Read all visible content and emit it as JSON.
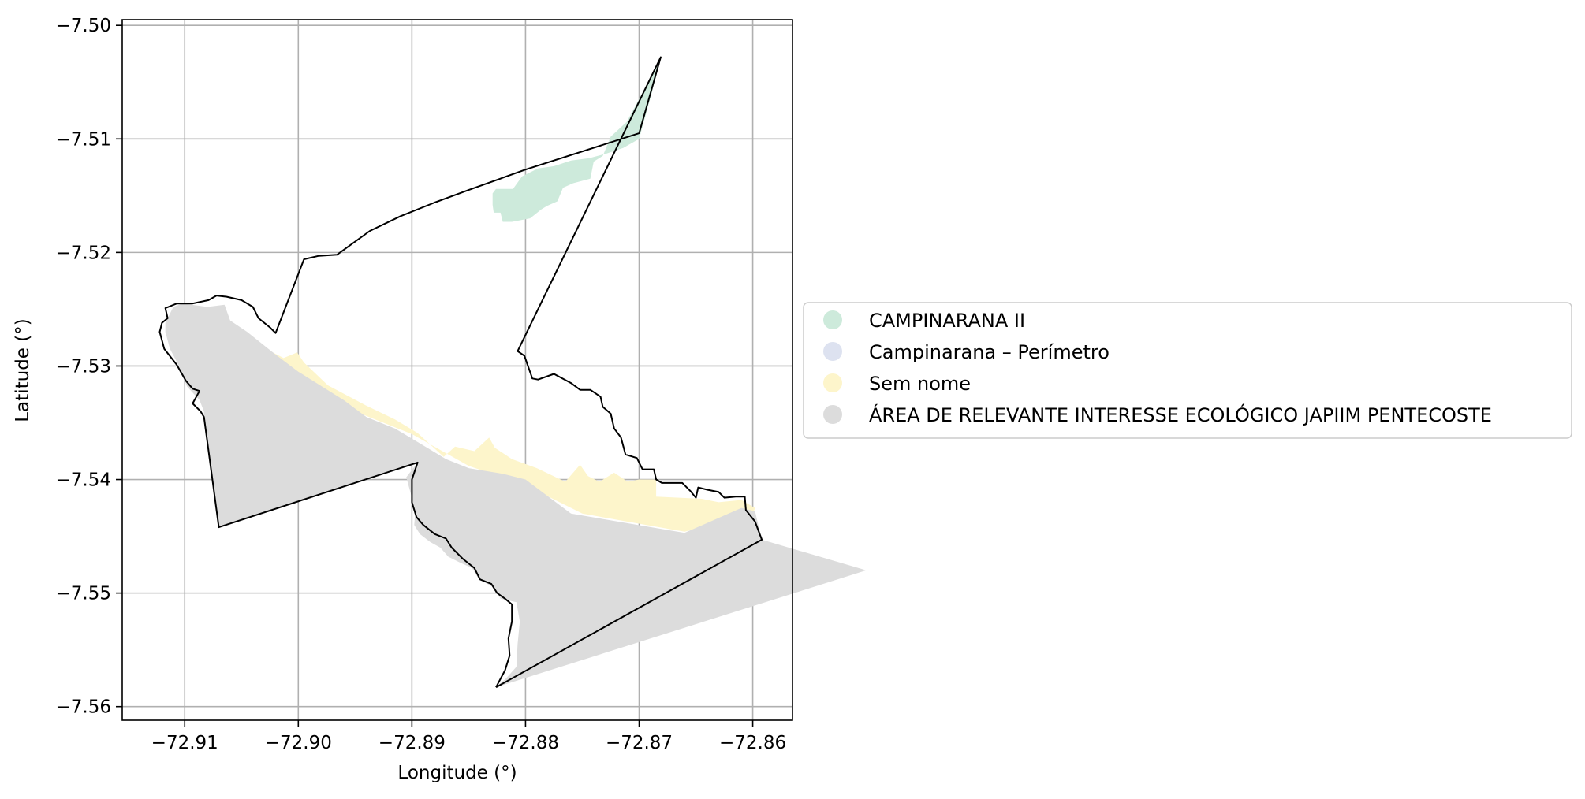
{
  "chart_data": {
    "type": "map",
    "xlabel": "Longitude (°)",
    "ylabel": "Latitude (°)",
    "xlim": [
      -72.9155,
      -72.8565
    ],
    "ylim": [
      -7.5612,
      -7.4995
    ],
    "xticks": [
      -72.91,
      -72.9,
      -72.89,
      -72.88,
      -72.87,
      -72.86
    ],
    "yticks": [
      -7.5,
      -7.51,
      -7.52,
      -7.53,
      -7.54,
      -7.55,
      -7.56
    ],
    "xtick_labels": [
      "−72.91",
      "−72.90",
      "−72.89",
      "−72.88",
      "−72.87",
      "−72.86"
    ],
    "ytick_labels": [
      "−7.50",
      "−7.51",
      "−7.52",
      "−7.53",
      "−7.54",
      "−7.55",
      "−7.56"
    ],
    "grid": true,
    "legend_position": "right",
    "legend": [
      {
        "label": "CAMPINARANA II",
        "color": "#cdeadb"
      },
      {
        "label": "Campinarana – Perímetro",
        "color": "#dde2f0"
      },
      {
        "label": "Sem nome",
        "color": "#fdf5cb"
      },
      {
        "label": "ÁREA DE RELEVANTE INTERESSE ECOLÓGICO JAPIIM PENTECOSTE",
        "color": "#dcdcdc"
      }
    ],
    "layers": [
      {
        "name": "CAMPINARANA II",
        "color": "#cdeadb",
        "coordinates": [
          [
            -72.8826,
            -7.5144
          ],
          [
            -72.8811,
            -7.5144
          ],
          [
            -72.8803,
            -7.5133
          ],
          [
            -72.8789,
            -7.5126
          ],
          [
            -72.8775,
            -7.5124
          ],
          [
            -72.876,
            -7.5119
          ],
          [
            -72.8744,
            -7.5117
          ],
          [
            -72.8729,
            -7.5113
          ],
          [
            -72.8714,
            -7.5108
          ],
          [
            -72.87,
            -7.51
          ],
          [
            -72.8689,
            -7.506
          ],
          [
            -72.8681,
            -7.5028
          ],
          [
            -72.8698,
            -7.5061
          ],
          [
            -72.8711,
            -7.5085
          ],
          [
            -72.8725,
            -7.5098
          ],
          [
            -72.8732,
            -7.5115
          ],
          [
            -72.874,
            -7.512
          ],
          [
            -72.8743,
            -7.5135
          ],
          [
            -72.8758,
            -7.5139
          ],
          [
            -72.8767,
            -7.5143
          ],
          [
            -72.8772,
            -7.5155
          ],
          [
            -72.8781,
            -7.5159
          ],
          [
            -72.8786,
            -7.5162
          ],
          [
            -72.8796,
            -7.517
          ],
          [
            -72.8812,
            -7.5173
          ],
          [
            -72.882,
            -7.5173
          ],
          [
            -72.8822,
            -7.5165
          ],
          [
            -72.8828,
            -7.5165
          ],
          [
            -72.8829,
            -7.5158
          ],
          [
            -72.8829,
            -7.5148
          ]
        ]
      },
      {
        "name": "Sem nome",
        "color": "#fdf5cb",
        "coordinates": [
          [
            -72.9058,
            -7.5268
          ],
          [
            -72.9042,
            -7.5278
          ],
          [
            -72.9013,
            -7.5293
          ],
          [
            -72.9001,
            -7.5288
          ],
          [
            -72.8995,
            -7.5297
          ],
          [
            -72.8974,
            -7.5317
          ],
          [
            -72.894,
            -7.5335
          ],
          [
            -72.8915,
            -7.5347
          ],
          [
            -72.8895,
            -7.5359
          ],
          [
            -72.8872,
            -7.538
          ],
          [
            -72.8862,
            -7.5371
          ],
          [
            -72.8845,
            -7.5375
          ],
          [
            -72.8832,
            -7.5363
          ],
          [
            -72.8827,
            -7.5372
          ],
          [
            -72.8812,
            -7.5382
          ],
          [
            -72.879,
            -7.539
          ],
          [
            -72.8765,
            -7.5402
          ],
          [
            -72.8752,
            -7.5387
          ],
          [
            -72.8745,
            -7.5397
          ],
          [
            -72.8735,
            -7.5402
          ],
          [
            -72.8722,
            -7.5394
          ],
          [
            -72.871,
            -7.5402
          ],
          [
            -72.87,
            -7.54
          ],
          [
            -72.8685,
            -7.54
          ],
          [
            -72.8685,
            -7.5415
          ],
          [
            -72.8665,
            -7.5416
          ],
          [
            -72.8645,
            -7.5417
          ],
          [
            -72.863,
            -7.542
          ],
          [
            -72.861,
            -7.5418
          ],
          [
            -72.8598,
            -7.5425
          ],
          [
            -72.86,
            -7.5431
          ],
          [
            -72.866,
            -7.5446
          ],
          [
            -72.875,
            -7.543
          ],
          [
            -72.88,
            -7.5405
          ],
          [
            -72.885,
            -7.5388
          ],
          [
            -72.89,
            -7.536
          ],
          [
            -72.895,
            -7.534
          ],
          [
            -72.9,
            -7.5315
          ],
          [
            -72.905,
            -7.528
          ]
        ]
      },
      {
        "name": "ÁREA DE RELEVANTE INTERESSE ECOLÓGICO JAPIIM PENTECOSTE",
        "color": "#dcdcdc",
        "coordinates": [
          [
            -72.9117,
            -7.5262
          ],
          [
            -72.911,
            -7.5248
          ],
          [
            -72.9102,
            -7.5245
          ],
          [
            -72.908,
            -7.5248
          ],
          [
            -72.9065,
            -7.5246
          ],
          [
            -72.906,
            -7.526
          ],
          [
            -72.9045,
            -7.527
          ],
          [
            -72.902,
            -7.529
          ],
          [
            -72.9,
            -7.5305
          ],
          [
            -72.896,
            -7.533
          ],
          [
            -72.894,
            -7.5345
          ],
          [
            -72.8915,
            -7.5355
          ],
          [
            -72.889,
            -7.537
          ],
          [
            -72.887,
            -7.5382
          ],
          [
            -72.885,
            -7.539
          ],
          [
            -72.882,
            -7.5395
          ],
          [
            -72.88,
            -7.54
          ],
          [
            -72.876,
            -7.543
          ],
          [
            -72.866,
            -7.5447
          ],
          [
            -72.861,
            -7.5425
          ],
          [
            -72.8598,
            -7.5428
          ],
          [
            -72.8592,
            -7.5453
          ],
          [
            -72.85,
            -7.548
          ],
          [
            -72.8826,
            -7.5583
          ],
          [
            -72.8817,
            -7.5575
          ],
          [
            -72.8808,
            -7.5565
          ],
          [
            -72.8807,
            -7.5545
          ],
          [
            -72.8805,
            -7.5525
          ],
          [
            -72.8808,
            -7.5508
          ],
          [
            -72.8822,
            -7.5505
          ],
          [
            -72.8828,
            -7.5495
          ],
          [
            -72.8841,
            -7.5488
          ],
          [
            -72.8847,
            -7.5478
          ],
          [
            -72.8858,
            -7.5473
          ],
          [
            -72.8868,
            -7.5468
          ],
          [
            -72.8875,
            -7.546
          ],
          [
            -72.8884,
            -7.5455
          ],
          [
            -72.8893,
            -7.5448
          ],
          [
            -72.8898,
            -7.544
          ],
          [
            -72.8897,
            -7.5428
          ],
          [
            -72.89,
            -7.5416
          ],
          [
            -72.8905,
            -7.5398
          ],
          [
            -72.8895,
            -7.5385
          ],
          [
            -72.907,
            -7.5442
          ],
          [
            -72.9083,
            -7.535
          ],
          [
            -72.9083,
            -7.534
          ],
          [
            -72.9087,
            -7.533
          ],
          [
            -72.9098,
            -7.5318
          ],
          [
            -72.9105,
            -7.53
          ],
          [
            -72.9113,
            -7.5285
          ],
          [
            -72.9117,
            -7.527
          ]
        ]
      }
    ],
    "boundary": [
      [
        -72.8826,
        -7.5583
      ],
      [
        -72.8592,
        -7.5453
      ],
      [
        -72.8598,
        -7.5437
      ],
      [
        -72.8606,
        -7.5427
      ],
      [
        -72.8607,
        -7.5415
      ],
      [
        -72.8615,
        -7.5415
      ],
      [
        -72.8625,
        -7.5416
      ],
      [
        -72.863,
        -7.5411
      ],
      [
        -72.864,
        -7.5409
      ],
      [
        -72.8648,
        -7.5407
      ],
      [
        -72.865,
        -7.5416
      ],
      [
        -72.8655,
        -7.541
      ],
      [
        -72.8662,
        -7.5403
      ],
      [
        -72.868,
        -7.5403
      ],
      [
        -72.8685,
        -7.54
      ],
      [
        -72.8687,
        -7.5391
      ],
      [
        -72.8697,
        -7.5391
      ],
      [
        -72.8702,
        -7.5381
      ],
      [
        -72.8712,
        -7.5378
      ],
      [
        -72.8716,
        -7.5363
      ],
      [
        -72.8722,
        -7.5355
      ],
      [
        -72.8725,
        -7.5342
      ],
      [
        -72.8732,
        -7.5336
      ],
      [
        -72.8734,
        -7.5327
      ],
      [
        -72.8743,
        -7.5321
      ],
      [
        -72.8752,
        -7.5321
      ],
      [
        -72.876,
        -7.5315
      ],
      [
        -72.8775,
        -7.5307
      ],
      [
        -72.8789,
        -7.5312
      ],
      [
        -72.8794,
        -7.5311
      ],
      [
        -72.8801,
        -7.5291
      ],
      [
        -72.8807,
        -7.5287
      ],
      [
        -72.8681,
        -7.5028
      ],
      [
        -72.87,
        -7.5095
      ],
      [
        -72.88,
        -7.5127
      ],
      [
        -72.885,
        -7.5145
      ],
      [
        -72.888,
        -7.5156
      ],
      [
        -72.891,
        -7.5168
      ],
      [
        -72.8937,
        -7.5181
      ],
      [
        -72.8966,
        -7.5202
      ],
      [
        -72.8982,
        -7.5203
      ],
      [
        -72.8995,
        -7.5206
      ],
      [
        -72.902,
        -7.5271
      ],
      [
        -72.9025,
        -7.5266
      ],
      [
        -72.9035,
        -7.5258
      ],
      [
        -72.904,
        -7.5248
      ],
      [
        -72.905,
        -7.5242
      ],
      [
        -72.9063,
        -7.5239
      ],
      [
        -72.9072,
        -7.5238
      ],
      [
        -72.9079,
        -7.5242
      ],
      [
        -72.9093,
        -7.5245
      ],
      [
        -72.9107,
        -7.5245
      ],
      [
        -72.9117,
        -7.5249
      ],
      [
        -72.9115,
        -7.5258
      ],
      [
        -72.912,
        -7.5262
      ],
      [
        -72.9122,
        -7.527
      ],
      [
        -72.9118,
        -7.5285
      ],
      [
        -72.9107,
        -7.5299
      ],
      [
        -72.9099,
        -7.5313
      ],
      [
        -72.9093,
        -7.532
      ],
      [
        -72.9087,
        -7.5322
      ],
      [
        -72.9093,
        -7.5333
      ],
      [
        -72.9086,
        -7.534
      ],
      [
        -72.9083,
        -7.5345
      ],
      [
        -72.907,
        -7.5442
      ],
      [
        -72.8895,
        -7.5385
      ],
      [
        -72.89,
        -7.54
      ],
      [
        -72.89,
        -7.542
      ],
      [
        -72.8896,
        -7.5433
      ],
      [
        -72.889,
        -7.544
      ],
      [
        -72.888,
        -7.5448
      ],
      [
        -72.887,
        -7.5452
      ],
      [
        -72.8865,
        -7.546
      ],
      [
        -72.8855,
        -7.547
      ],
      [
        -72.8845,
        -7.5478
      ],
      [
        -72.884,
        -7.5488
      ],
      [
        -72.883,
        -7.5492
      ],
      [
        -72.8825,
        -7.55
      ],
      [
        -72.8818,
        -7.5505
      ],
      [
        -72.8812,
        -7.551
      ],
      [
        -72.8812,
        -7.5525
      ],
      [
        -72.8815,
        -7.554
      ],
      [
        -72.8814,
        -7.5555
      ],
      [
        -72.8818,
        -7.5568
      ],
      [
        -72.8826,
        -7.5583
      ]
    ]
  }
}
